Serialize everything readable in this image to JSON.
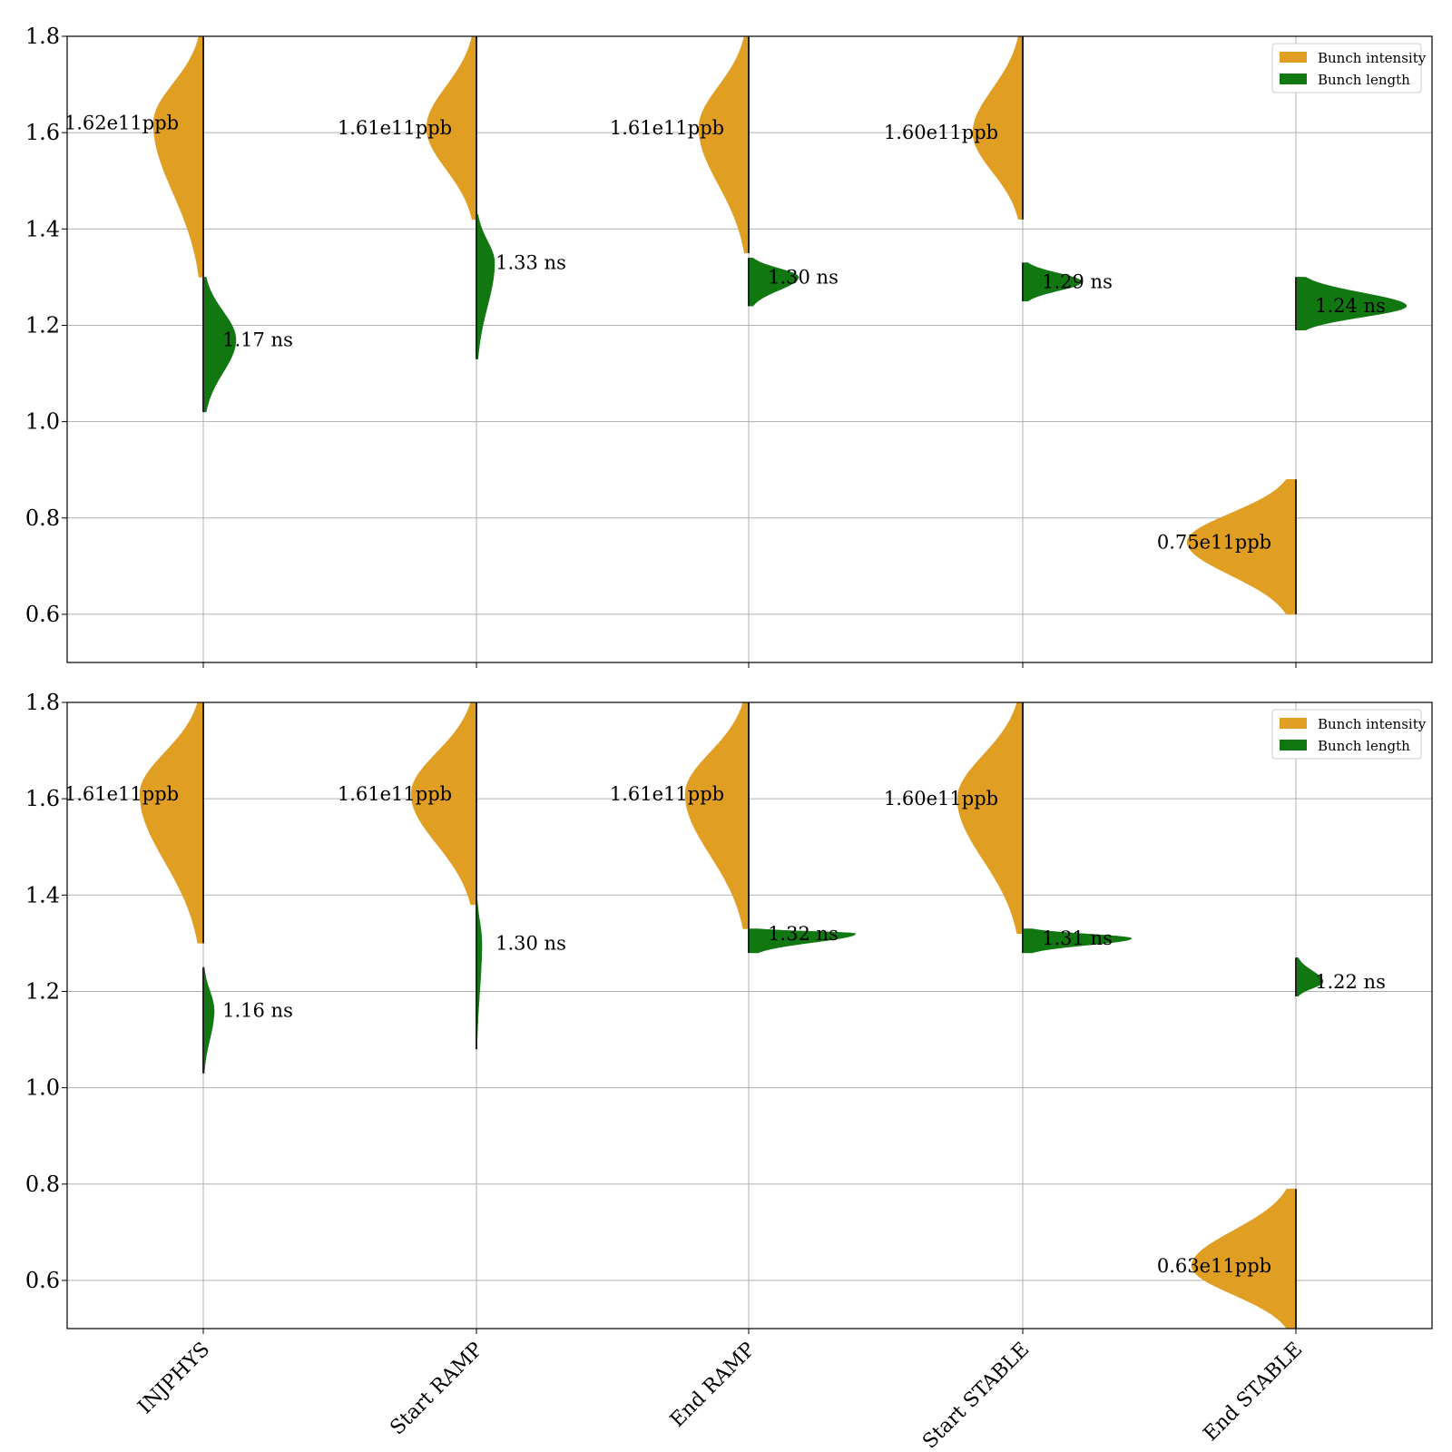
{
  "colors": {
    "intensity": "#E09F22",
    "length": "#117711",
    "grid": "#b0b0b0",
    "axis": "#000000"
  },
  "chart_data": [
    {
      "type": "violin",
      "name": "top",
      "ylim": [
        0.5,
        1.8
      ],
      "yticks": [
        "0.6",
        "0.8",
        "1.0",
        "1.2",
        "1.4",
        "1.6",
        "1.8"
      ],
      "categories": [
        "INJPHYS",
        "Start RAMP",
        "End RAMP",
        "Start STABLE",
        "End STABLE"
      ],
      "legend": {
        "position": "top-right",
        "entries": [
          "Bunch intensity",
          "Bunch length"
        ]
      },
      "series": [
        {
          "name": "Bunch intensity",
          "side": "left",
          "unit": "e11ppb",
          "medians": [
            1.62,
            1.61,
            1.61,
            1.6,
            0.75
          ],
          "labels": [
            "1.62e11ppb",
            "1.61e11ppb",
            "1.61e11ppb",
            "1.60e11ppb",
            "0.75e11ppb"
          ],
          "ranges": [
            [
              1.3,
              1.8
            ],
            [
              1.42,
              1.8
            ],
            [
              1.35,
              1.8
            ],
            [
              1.42,
              1.8
            ],
            [
              0.6,
              0.88
            ]
          ]
        },
        {
          "name": "Bunch length",
          "side": "right",
          "unit": "ns",
          "medians": [
            1.17,
            1.33,
            1.3,
            1.29,
            1.24
          ],
          "labels": [
            "1.17 ns",
            "1.33 ns",
            "1.30 ns",
            "1.29 ns",
            "1.24 ns"
          ],
          "ranges": [
            [
              1.02,
              1.3
            ],
            [
              1.13,
              1.43
            ],
            [
              1.24,
              1.34
            ],
            [
              1.25,
              1.33
            ],
            [
              1.19,
              1.3
            ]
          ]
        }
      ]
    },
    {
      "type": "violin",
      "name": "bottom",
      "ylim": [
        0.5,
        1.8
      ],
      "yticks": [
        "0.6",
        "0.8",
        "1.0",
        "1.2",
        "1.4",
        "1.6",
        "1.8"
      ],
      "categories": [
        "INJPHYS",
        "Start RAMP",
        "End RAMP",
        "Start STABLE",
        "End STABLE"
      ],
      "legend": {
        "position": "top-right",
        "entries": [
          "Bunch intensity",
          "Bunch length"
        ]
      },
      "series": [
        {
          "name": "Bunch intensity",
          "side": "left",
          "unit": "e11ppb",
          "medians": [
            1.61,
            1.61,
            1.61,
            1.6,
            0.63
          ],
          "labels": [
            "1.61e11ppb",
            "1.61e11ppb",
            "1.61e11ppb",
            "1.60e11ppb",
            "0.63e11ppb"
          ],
          "ranges": [
            [
              1.3,
              1.8
            ],
            [
              1.38,
              1.8
            ],
            [
              1.33,
              1.8
            ],
            [
              1.32,
              1.8
            ],
            [
              0.5,
              0.79
            ]
          ]
        },
        {
          "name": "Bunch length",
          "side": "right",
          "unit": "ns",
          "medians": [
            1.16,
            1.3,
            1.32,
            1.31,
            1.22
          ],
          "labels": [
            "1.16 ns",
            "1.30 ns",
            "1.32 ns",
            "1.31 ns",
            "1.22 ns"
          ],
          "ranges": [
            [
              1.03,
              1.25
            ],
            [
              1.08,
              1.4
            ],
            [
              1.28,
              1.33
            ],
            [
              1.28,
              1.33
            ],
            [
              1.19,
              1.27
            ]
          ]
        }
      ]
    }
  ]
}
